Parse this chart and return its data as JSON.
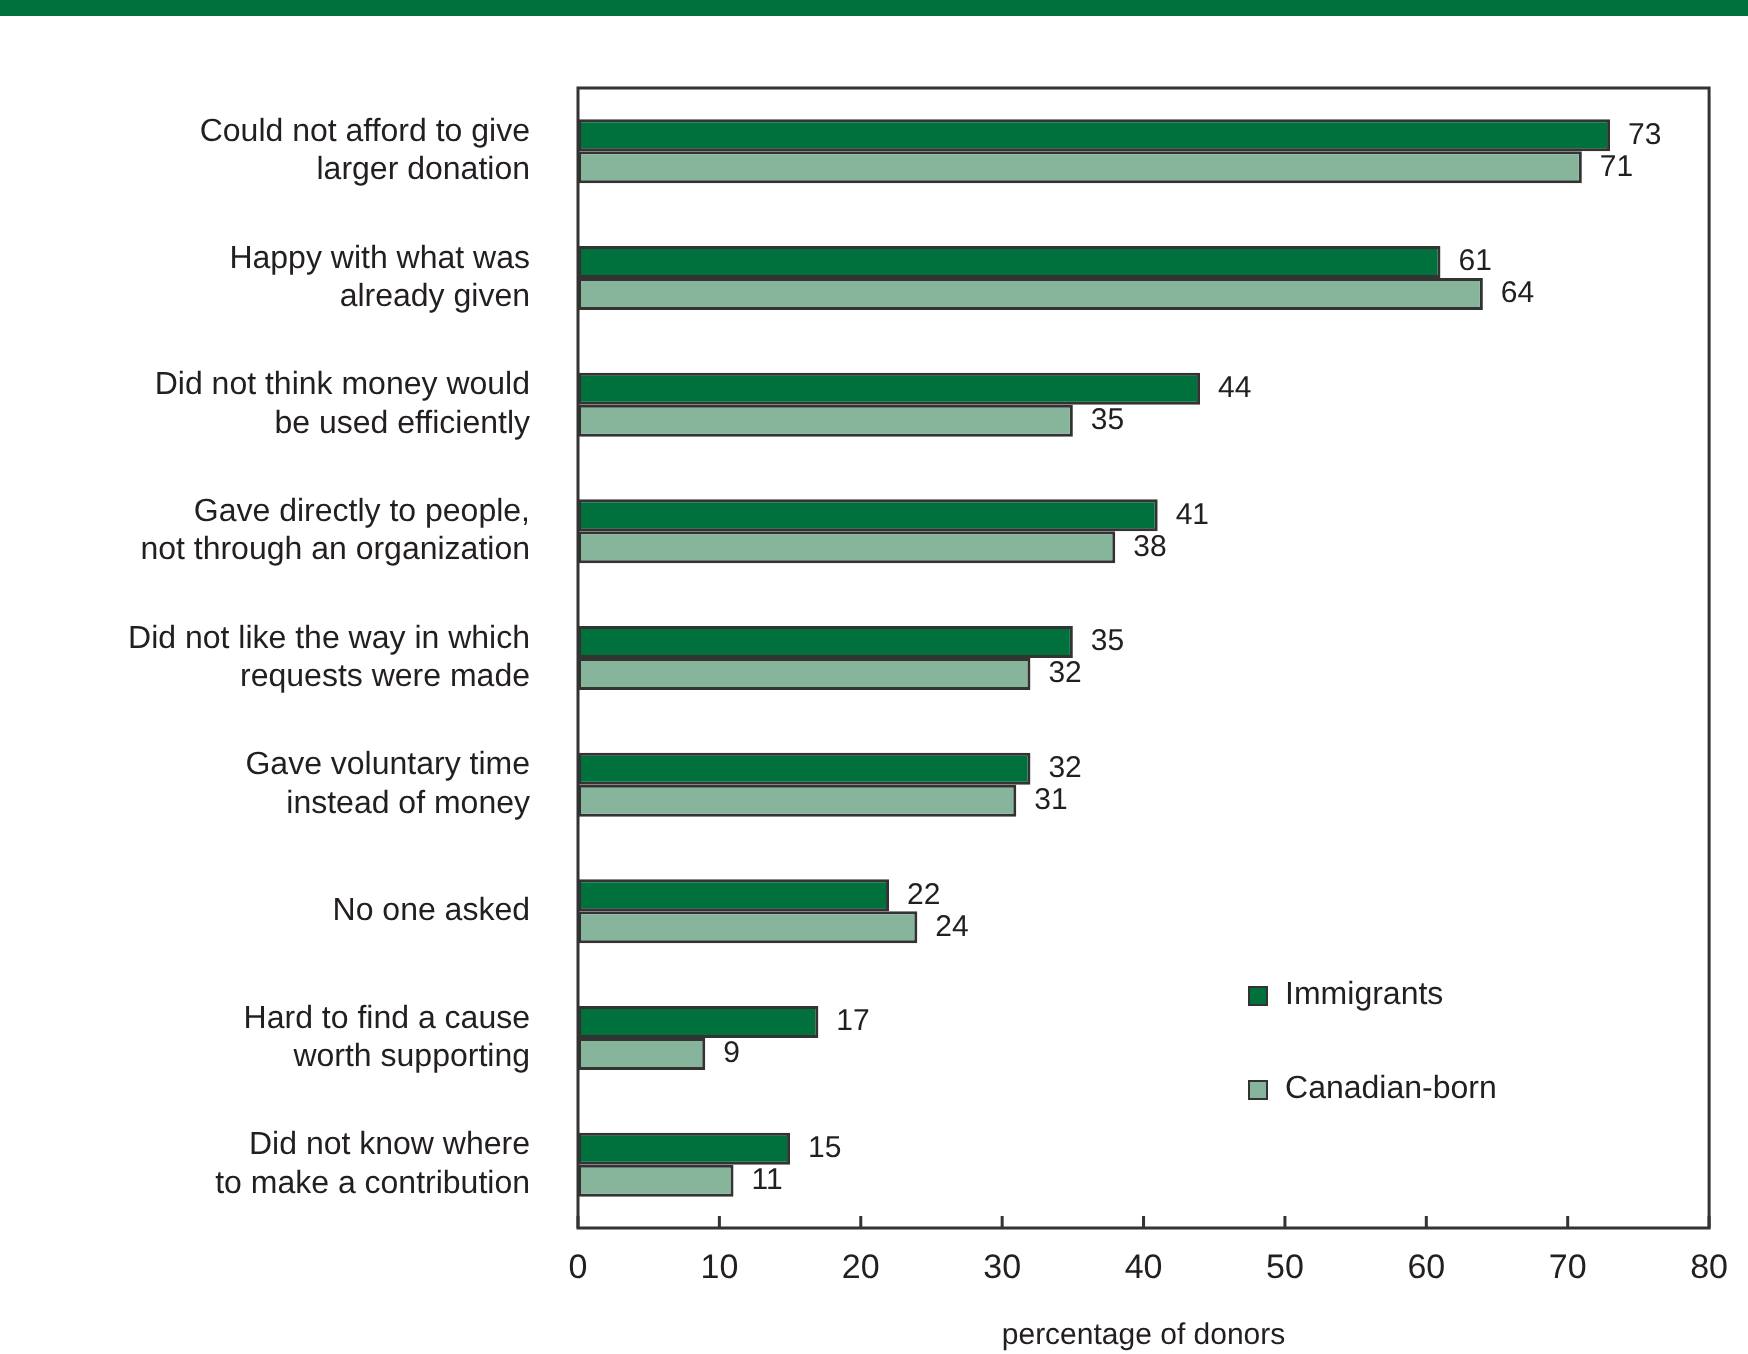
{
  "chart_data": {
    "type": "bar",
    "orientation": "horizontal",
    "xlabel": "percentage of donors",
    "categories": [
      "Could not afford to give\nlarger donation",
      "Happy with what was\nalready given",
      "Did not think money would\nbe used efficiently",
      "Gave directly to people,\nnot through an organization",
      "Did not like the way in which\nrequests were made",
      "Gave voluntary time\ninstead of money",
      "No one asked",
      "Hard to find a cause\nworth supporting",
      "Did not know where\nto make a contribution"
    ],
    "series": [
      {
        "name": "Immigrants",
        "color": "#00703c",
        "values": [
          73,
          61,
          44,
          41,
          35,
          32,
          22,
          17,
          15
        ]
      },
      {
        "name": "Canadian-born",
        "color": "#86b59c",
        "values": [
          71,
          64,
          35,
          38,
          32,
          31,
          24,
          9,
          11
        ]
      }
    ],
    "xlim": [
      0,
      80
    ],
    "xticks": [
      0,
      10,
      20,
      30,
      40,
      50,
      60,
      70,
      80
    ],
    "data_labels": true,
    "legend": "bottom right"
  }
}
